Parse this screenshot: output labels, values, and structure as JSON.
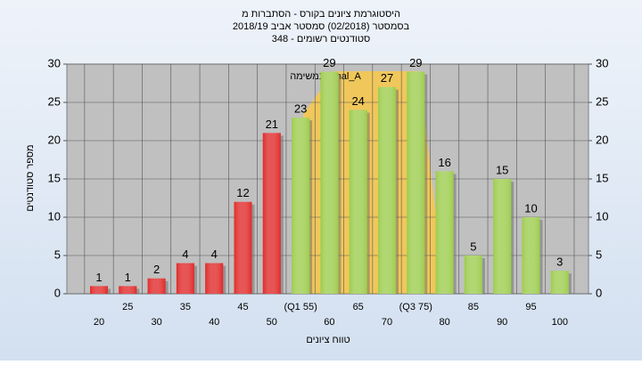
{
  "chart_data": {
    "type": "bar",
    "title_lines": [
      "היסטוגרמת ציונים בקורס - הסתברות מ",
      "בסמסטר  (02/2018)  סמסטר אביב 2018/19",
      "סטודנטים רשומים - 348"
    ],
    "annotation": "במשימה Final_A",
    "x_label": "טווח ציונים",
    "y_label": "מספר סטודנטים",
    "categories": [
      "20",
      "25",
      "30",
      "35",
      "40",
      "45",
      "50",
      "(Q1 55)",
      "60",
      "65",
      "70",
      "(Q3 75)",
      "80",
      "85",
      "90",
      "95",
      "100"
    ],
    "values": [
      1,
      1,
      2,
      4,
      4,
      12,
      21,
      23,
      29,
      24,
      27,
      29,
      16,
      5,
      15,
      10,
      3
    ],
    "colors": [
      "#e02828",
      "#e02828",
      "#e02828",
      "#e02828",
      "#e02828",
      "#e02828",
      "#e02828",
      "#9ccc4c",
      "#9ccc4c",
      "#9ccc4c",
      "#9ccc4c",
      "#9ccc4c",
      "#9ccc4c",
      "#9ccc4c",
      "#9ccc4c",
      "#9ccc4c",
      "#9ccc4c"
    ],
    "ylim": [
      0,
      30
    ],
    "yticks": [
      0,
      5,
      10,
      15,
      20,
      25,
      30
    ],
    "grid": true
  }
}
